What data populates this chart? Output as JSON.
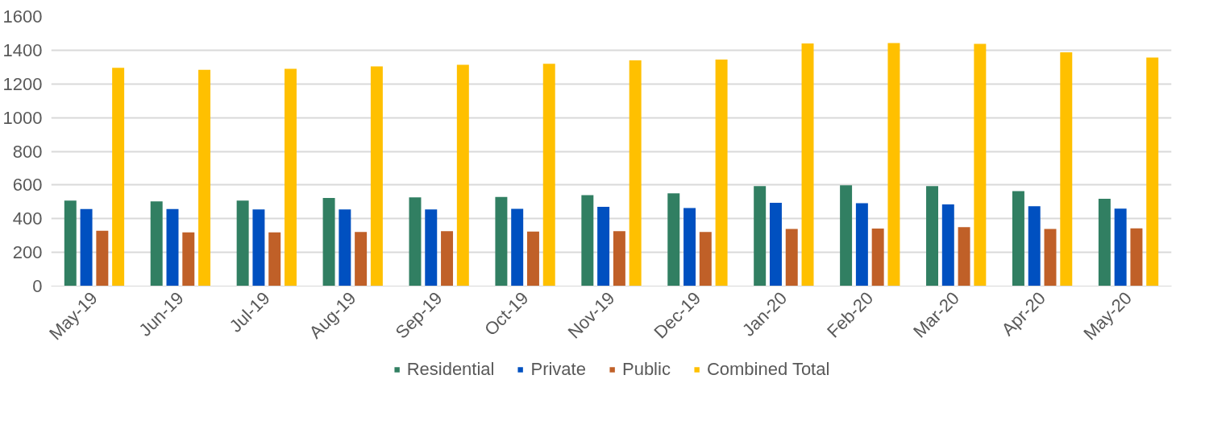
{
  "chart_data": {
    "type": "bar",
    "categories": [
      "May-19",
      "Jun-19",
      "Jul-19",
      "Aug-19",
      "Sep-19",
      "Oct-19",
      "Nov-19",
      "Dec-19",
      "Jan-20",
      "Feb-20",
      "Mar-20",
      "Apr-20",
      "May-20"
    ],
    "series": [
      {
        "name": "Residential",
        "color": "#317f62",
        "values": [
          508,
          503,
          507,
          523,
          527,
          529,
          540,
          551,
          594,
          598,
          594,
          563,
          518
        ]
      },
      {
        "name": "Private",
        "color": "#0050c0",
        "values": [
          457,
          457,
          455,
          455,
          455,
          458,
          470,
          463,
          494,
          492,
          485,
          474,
          460
        ]
      },
      {
        "name": "Public",
        "color": "#c06028",
        "values": [
          328,
          319,
          319,
          321,
          326,
          323,
          326,
          321,
          339,
          341,
          350,
          339,
          343
        ]
      },
      {
        "name": "Combined Total",
        "color": "#ffc000",
        "values": [
          1296,
          1284,
          1289,
          1304,
          1313,
          1320,
          1340,
          1344,
          1440,
          1442,
          1438,
          1387,
          1356
        ]
      }
    ],
    "ylim": [
      0,
      1600
    ],
    "yticks": [
      0,
      200,
      400,
      600,
      800,
      1000,
      1200,
      1400,
      1600
    ],
    "grid": "y",
    "legend": "bottom"
  }
}
